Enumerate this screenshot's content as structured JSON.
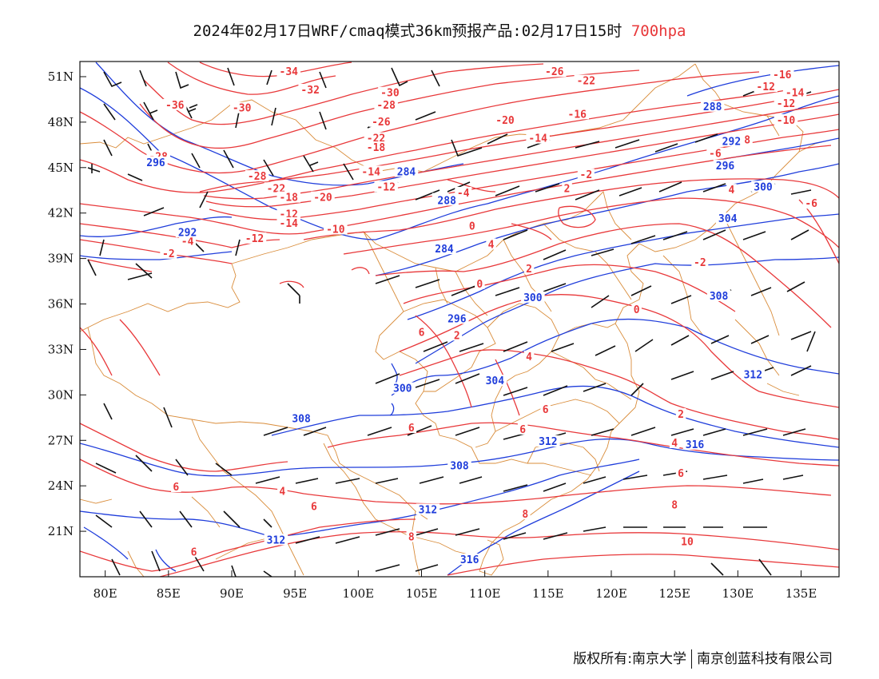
{
  "title": {
    "main": "2024年02月17日WRF/cmaq模式36km预报产品:02月17日15时",
    "level": "700hpa"
  },
  "copyright": {
    "left": "版权所有:南京大学",
    "right": "南京创蓝科技有限公司"
  },
  "axes": {
    "lon_ticks": [
      "80E",
      "85E",
      "90E",
      "95E",
      "100E",
      "105E",
      "110E",
      "115E",
      "120E",
      "125E",
      "130E",
      "135E"
    ],
    "lat_ticks": [
      "51N",
      "48N",
      "45N",
      "42N",
      "39N",
      "36N",
      "33N",
      "30N",
      "27N",
      "24N",
      "21N"
    ],
    "lon_range": [
      78,
      138
    ],
    "lat_range": [
      18,
      52
    ]
  },
  "colors": {
    "temperature": "#e8383a",
    "geopotential": "#1f3ddb",
    "boundary": "#d98c3a",
    "wind": "#111111"
  },
  "temperature_labels": [
    {
      "lon": 94.5,
      "lat": 51.2,
      "text": "-34"
    },
    {
      "lon": 85.5,
      "lat": 49.0,
      "text": "-36"
    },
    {
      "lon": 90.8,
      "lat": 48.8,
      "text": "-30"
    },
    {
      "lon": 96.2,
      "lat": 50.0,
      "text": "-32"
    },
    {
      "lon": 102.5,
      "lat": 49.8,
      "text": "-30"
    },
    {
      "lon": 102.2,
      "lat": 49.0,
      "text": "-28"
    },
    {
      "lon": 101.8,
      "lat": 47.9,
      "text": "-26"
    },
    {
      "lon": 101.4,
      "lat": 46.8,
      "text": "-22"
    },
    {
      "lon": 101.4,
      "lat": 46.2,
      "text": "-18"
    },
    {
      "lon": 111.6,
      "lat": 48.0,
      "text": "-20"
    },
    {
      "lon": 115.5,
      "lat": 51.2,
      "text": "-26"
    },
    {
      "lon": 118.0,
      "lat": 50.6,
      "text": "-22"
    },
    {
      "lon": 117.3,
      "lat": 48.4,
      "text": "-16"
    },
    {
      "lon": 114.2,
      "lat": 46.8,
      "text": "-14"
    },
    {
      "lon": 133.5,
      "lat": 51.0,
      "text": "-16"
    },
    {
      "lon": 132.2,
      "lat": 50.2,
      "text": "-12"
    },
    {
      "lon": 134.5,
      "lat": 49.8,
      "text": "-14"
    },
    {
      "lon": 133.8,
      "lat": 49.1,
      "text": "-12"
    },
    {
      "lon": 133.8,
      "lat": 48.0,
      "text": "-10"
    },
    {
      "lon": 130.5,
      "lat": 46.7,
      "text": "-8"
    },
    {
      "lon": 128.2,
      "lat": 45.8,
      "text": "-6"
    },
    {
      "lon": 84.2,
      "lat": 45.6,
      "text": "-28"
    },
    {
      "lon": 92.0,
      "lat": 44.3,
      "text": "-28"
    },
    {
      "lon": 93.5,
      "lat": 43.5,
      "text": "-22"
    },
    {
      "lon": 94.5,
      "lat": 42.9,
      "text": "-18"
    },
    {
      "lon": 97.2,
      "lat": 42.9,
      "text": "-20"
    },
    {
      "lon": 101.0,
      "lat": 44.6,
      "text": "-14"
    },
    {
      "lon": 102.2,
      "lat": 43.6,
      "text": "-12"
    },
    {
      "lon": 94.5,
      "lat": 41.8,
      "text": "-12"
    },
    {
      "lon": 94.5,
      "lat": 41.2,
      "text": "-14"
    },
    {
      "lon": 91.8,
      "lat": 40.2,
      "text": "-12"
    },
    {
      "lon": 98.2,
      "lat": 40.8,
      "text": "-10"
    },
    {
      "lon": 86.5,
      "lat": 40.0,
      "text": "-4"
    },
    {
      "lon": 85.0,
      "lat": 39.2,
      "text": "-2"
    },
    {
      "lon": 106.5,
      "lat": 42.8,
      "text": "-2"
    },
    {
      "lon": 108.3,
      "lat": 43.2,
      "text": "-4"
    },
    {
      "lon": 118.0,
      "lat": 44.4,
      "text": "-2"
    },
    {
      "lon": 135.8,
      "lat": 42.5,
      "text": "-6"
    },
    {
      "lon": 127.0,
      "lat": 38.6,
      "text": "-2"
    },
    {
      "lon": 129.5,
      "lat": 43.4,
      "text": "4"
    },
    {
      "lon": 116.5,
      "lat": 43.5,
      "text": "2"
    },
    {
      "lon": 109.0,
      "lat": 41.0,
      "text": "0"
    },
    {
      "lon": 113.5,
      "lat": 38.2,
      "text": "2"
    },
    {
      "lon": 110.5,
      "lat": 39.8,
      "text": "4"
    },
    {
      "lon": 122.0,
      "lat": 35.5,
      "text": "0"
    },
    {
      "lon": 109.6,
      "lat": 37.2,
      "text": "0"
    },
    {
      "lon": 105.0,
      "lat": 34.0,
      "text": "6"
    },
    {
      "lon": 107.8,
      "lat": 33.8,
      "text": "2"
    },
    {
      "lon": 113.5,
      "lat": 32.4,
      "text": "4"
    },
    {
      "lon": 114.8,
      "lat": 28.9,
      "text": "6"
    },
    {
      "lon": 113.0,
      "lat": 27.6,
      "text": "6"
    },
    {
      "lon": 104.2,
      "lat": 27.7,
      "text": "6"
    },
    {
      "lon": 125.5,
      "lat": 28.6,
      "text": "2"
    },
    {
      "lon": 125.0,
      "lat": 26.7,
      "text": "4"
    },
    {
      "lon": 125.5,
      "lat": 24.7,
      "text": "6"
    },
    {
      "lon": 125.0,
      "lat": 22.6,
      "text": "8"
    },
    {
      "lon": 113.2,
      "lat": 22.0,
      "text": "8"
    },
    {
      "lon": 126.0,
      "lat": 20.2,
      "text": "10"
    },
    {
      "lon": 85.6,
      "lat": 23.8,
      "text": "6"
    },
    {
      "lon": 94.0,
      "lat": 23.5,
      "text": "4"
    },
    {
      "lon": 96.5,
      "lat": 22.5,
      "text": "6"
    },
    {
      "lon": 87.0,
      "lat": 19.5,
      "text": "6"
    },
    {
      "lon": 104.2,
      "lat": 20.5,
      "text": "8"
    }
  ],
  "height_labels": [
    {
      "lon": 84.0,
      "lat": 45.2,
      "text": "296"
    },
    {
      "lon": 103.8,
      "lat": 44.6,
      "text": "284"
    },
    {
      "lon": 107.0,
      "lat": 42.7,
      "text": "288"
    },
    {
      "lon": 86.5,
      "lat": 40.6,
      "text": "292"
    },
    {
      "lon": 106.8,
      "lat": 39.5,
      "text": "284"
    },
    {
      "lon": 113.8,
      "lat": 36.3,
      "text": "300"
    },
    {
      "lon": 107.8,
      "lat": 34.9,
      "text": "296"
    },
    {
      "lon": 128.0,
      "lat": 48.9,
      "text": "288"
    },
    {
      "lon": 129.5,
      "lat": 46.6,
      "text": "292"
    },
    {
      "lon": 129.0,
      "lat": 45.0,
      "text": "296"
    },
    {
      "lon": 132.0,
      "lat": 43.6,
      "text": "300"
    },
    {
      "lon": 129.2,
      "lat": 41.5,
      "text": "304"
    },
    {
      "lon": 128.5,
      "lat": 36.4,
      "text": "308"
    },
    {
      "lon": 131.2,
      "lat": 31.2,
      "text": "312"
    },
    {
      "lon": 103.5,
      "lat": 30.3,
      "text": "300"
    },
    {
      "lon": 110.8,
      "lat": 30.8,
      "text": "304"
    },
    {
      "lon": 95.5,
      "lat": 28.3,
      "text": "308"
    },
    {
      "lon": 108.0,
      "lat": 25.2,
      "text": "308"
    },
    {
      "lon": 115.0,
      "lat": 26.8,
      "text": "312"
    },
    {
      "lon": 126.6,
      "lat": 26.6,
      "text": "316"
    },
    {
      "lon": 105.5,
      "lat": 22.3,
      "text": "312"
    },
    {
      "lon": 93.5,
      "lat": 20.3,
      "text": "312"
    },
    {
      "lon": 108.8,
      "lat": 19.0,
      "text": "316"
    }
  ]
}
